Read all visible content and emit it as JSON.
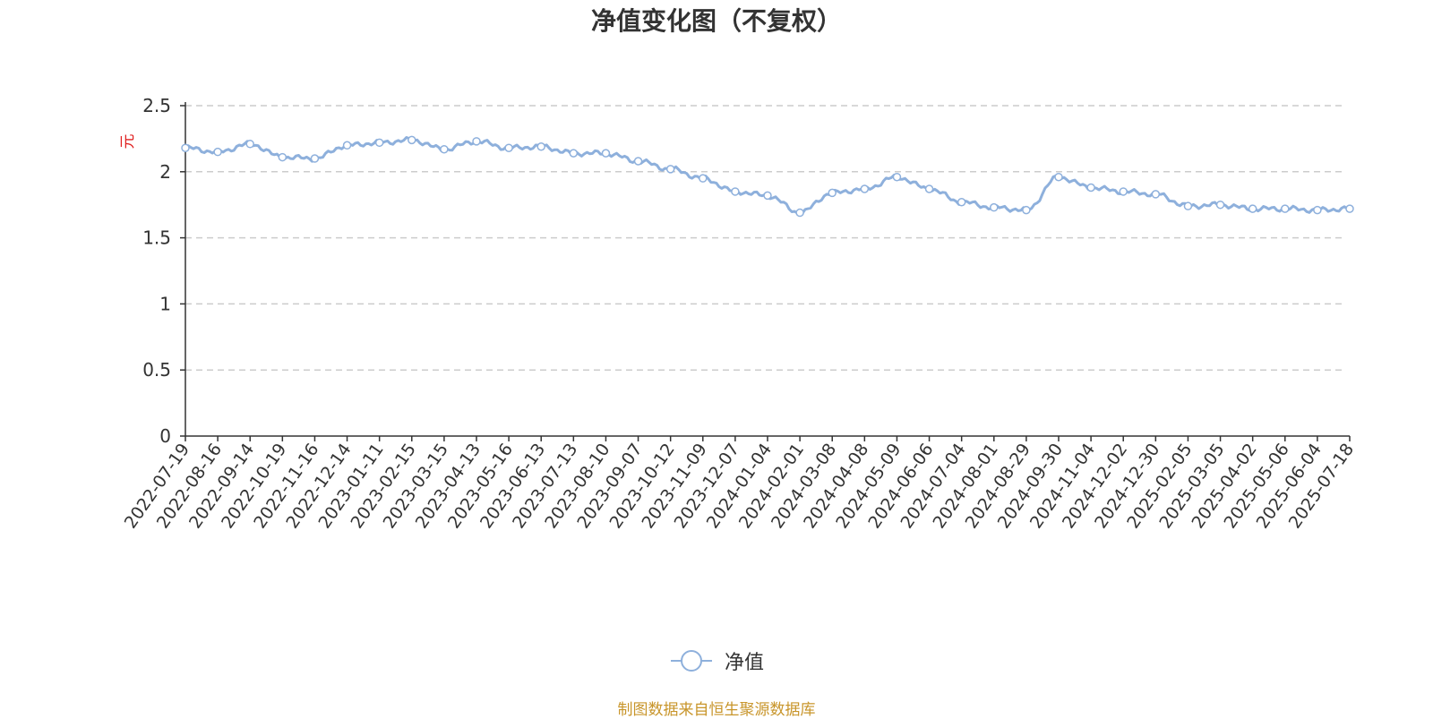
{
  "chart_data": {
    "type": "line",
    "title": "净值变化图（不复权）",
    "ylabel": "元",
    "ylim": [
      0,
      2.5
    ],
    "yticks": [
      "0",
      "0.5",
      "1",
      "1.5",
      "2",
      "2.5"
    ],
    "ytick_values": [
      0,
      0.5,
      1,
      1.5,
      2,
      2.5
    ],
    "grid": "horizontal dashed",
    "legend_position": "bottom",
    "line_color": "#8eb0dc",
    "x_categories": [
      "2022-07-19",
      "2022-08-16",
      "2022-09-14",
      "2022-10-19",
      "2022-11-16",
      "2022-12-14",
      "2023-01-11",
      "2023-02-15",
      "2023-03-15",
      "2023-04-13",
      "2023-05-16",
      "2023-06-13",
      "2023-07-13",
      "2023-08-10",
      "2023-09-07",
      "2023-10-12",
      "2023-11-09",
      "2023-12-07",
      "2024-01-04",
      "2024-02-01",
      "2024-03-08",
      "2024-04-08",
      "2024-05-09",
      "2024-06-06",
      "2024-07-04",
      "2024-08-01",
      "2024-08-29",
      "2024-09-30",
      "2024-11-04",
      "2024-12-02",
      "2024-12-30",
      "2025-02-05",
      "2025-03-05",
      "2025-04-02",
      "2025-05-06",
      "2025-06-04",
      "2025-07-18"
    ],
    "series": [
      {
        "name": "净值",
        "values": [
          2.18,
          2.15,
          2.21,
          2.11,
          2.1,
          2.2,
          2.22,
          2.24,
          2.17,
          2.23,
          2.18,
          2.19,
          2.14,
          2.14,
          2.08,
          2.02,
          1.95,
          1.85,
          1.82,
          1.69,
          1.84,
          1.87,
          1.96,
          1.87,
          1.77,
          1.73,
          1.71,
          1.96,
          1.88,
          1.85,
          1.83,
          1.74,
          1.75,
          1.72,
          1.72,
          1.71,
          1.72
        ],
        "marker": "hollow-circle"
      }
    ]
  },
  "source_note": "制图数据来自恒生聚源数据库"
}
